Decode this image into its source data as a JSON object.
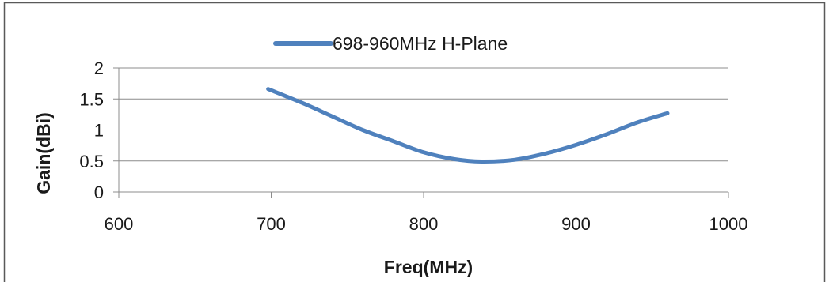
{
  "chart_data": {
    "type": "line",
    "title": "",
    "xlabel": "Freq(MHz)",
    "ylabel": "Gain(dBi)",
    "xlim": [
      600,
      1000
    ],
    "ylim": [
      0,
      2
    ],
    "x_ticks": [
      "600",
      "700",
      "800",
      "900",
      "1000"
    ],
    "y_ticks": [
      "0",
      "0.5",
      "1",
      "1.5",
      "2"
    ],
    "grid": "horizontal",
    "legend_position": "top",
    "series": [
      {
        "name": "698-960MHz H-Plane",
        "color": "#4f81bd",
        "x": [
          698,
          720,
          740,
          760,
          780,
          800,
          820,
          838,
          860,
          880,
          900,
          920,
          940,
          960
        ],
        "y": [
          1.66,
          1.44,
          1.22,
          1.0,
          0.82,
          0.64,
          0.53,
          0.49,
          0.52,
          0.62,
          0.76,
          0.93,
          1.12,
          1.27
        ]
      }
    ]
  }
}
